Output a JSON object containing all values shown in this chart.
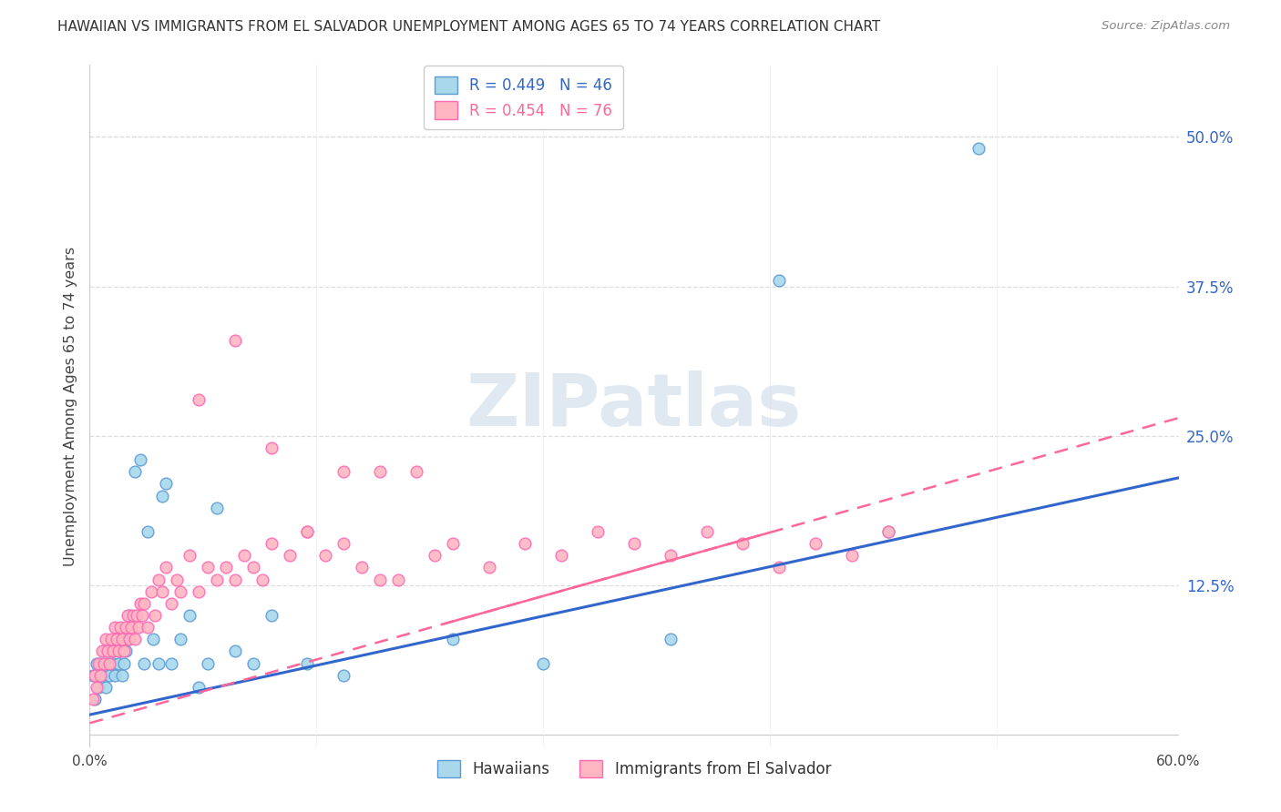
{
  "title": "HAWAIIAN VS IMMIGRANTS FROM EL SALVADOR UNEMPLOYMENT AMONG AGES 65 TO 74 YEARS CORRELATION CHART",
  "source": "Source: ZipAtlas.com",
  "ylabel": "Unemployment Among Ages 65 to 74 years",
  "ytick_labels": [
    "12.5%",
    "25.0%",
    "37.5%",
    "50.0%"
  ],
  "ytick_values": [
    0.125,
    0.25,
    0.375,
    0.5
  ],
  "xlim": [
    0.0,
    0.6
  ],
  "ylim": [
    -0.01,
    0.56
  ],
  "legend_R_hawaiian": "R = 0.449",
  "legend_N_hawaiian": "N = 46",
  "legend_R_salvador": "R = 0.454",
  "legend_N_salvador": "N = 76",
  "color_hawaiian_fill": "#a8d8ea",
  "color_hawaiian_edge": "#5b9bd5",
  "color_salvador_fill": "#ffb6c1",
  "color_salvador_edge": "#ff69b4",
  "color_line_hawaiian": "#3366cc",
  "color_line_salvador": "#ff6699",
  "watermark_text": "ZIPatlas",
  "background_color": "#ffffff",
  "grid_color": "#dddddd",
  "hawaiian_x": [
    0.002,
    0.003,
    0.004,
    0.005,
    0.006,
    0.007,
    0.008,
    0.009,
    0.01,
    0.011,
    0.012,
    0.013,
    0.014,
    0.015,
    0.016,
    0.017,
    0.018,
    0.019,
    0.02,
    0.021,
    0.022,
    0.025,
    0.028,
    0.03,
    0.032,
    0.035,
    0.038,
    0.04,
    0.042,
    0.045,
    0.05,
    0.055,
    0.06,
    0.065,
    0.07,
    0.08,
    0.09,
    0.1,
    0.12,
    0.14,
    0.2,
    0.25,
    0.32,
    0.38,
    0.44,
    0.49
  ],
  "hawaiian_y": [
    0.05,
    0.03,
    0.06,
    0.04,
    0.06,
    0.05,
    0.07,
    0.04,
    0.06,
    0.05,
    0.07,
    0.06,
    0.05,
    0.08,
    0.06,
    0.07,
    0.05,
    0.06,
    0.07,
    0.08,
    0.1,
    0.22,
    0.23,
    0.06,
    0.17,
    0.08,
    0.06,
    0.2,
    0.21,
    0.06,
    0.08,
    0.1,
    0.04,
    0.06,
    0.19,
    0.07,
    0.06,
    0.1,
    0.06,
    0.05,
    0.08,
    0.06,
    0.08,
    0.38,
    0.17,
    0.49
  ],
  "salvador_x": [
    0.002,
    0.003,
    0.004,
    0.005,
    0.006,
    0.007,
    0.008,
    0.009,
    0.01,
    0.011,
    0.012,
    0.013,
    0.014,
    0.015,
    0.016,
    0.017,
    0.018,
    0.019,
    0.02,
    0.021,
    0.022,
    0.023,
    0.024,
    0.025,
    0.026,
    0.027,
    0.028,
    0.029,
    0.03,
    0.032,
    0.034,
    0.036,
    0.038,
    0.04,
    0.042,
    0.045,
    0.048,
    0.05,
    0.055,
    0.06,
    0.065,
    0.07,
    0.075,
    0.08,
    0.085,
    0.09,
    0.095,
    0.1,
    0.11,
    0.12,
    0.13,
    0.14,
    0.15,
    0.16,
    0.17,
    0.18,
    0.19,
    0.2,
    0.22,
    0.24,
    0.26,
    0.28,
    0.3,
    0.32,
    0.34,
    0.36,
    0.38,
    0.4,
    0.42,
    0.44,
    0.06,
    0.08,
    0.1,
    0.12,
    0.14,
    0.16
  ],
  "salvador_y": [
    0.03,
    0.05,
    0.04,
    0.06,
    0.05,
    0.07,
    0.06,
    0.08,
    0.07,
    0.06,
    0.08,
    0.07,
    0.09,
    0.08,
    0.07,
    0.09,
    0.08,
    0.07,
    0.09,
    0.1,
    0.08,
    0.09,
    0.1,
    0.08,
    0.1,
    0.09,
    0.11,
    0.1,
    0.11,
    0.09,
    0.12,
    0.1,
    0.13,
    0.12,
    0.14,
    0.11,
    0.13,
    0.12,
    0.15,
    0.12,
    0.14,
    0.13,
    0.14,
    0.13,
    0.15,
    0.14,
    0.13,
    0.16,
    0.15,
    0.17,
    0.15,
    0.16,
    0.14,
    0.22,
    0.13,
    0.22,
    0.15,
    0.16,
    0.14,
    0.16,
    0.15,
    0.17,
    0.16,
    0.15,
    0.17,
    0.16,
    0.14,
    0.16,
    0.15,
    0.17,
    0.28,
    0.33,
    0.24,
    0.17,
    0.22,
    0.13
  ],
  "line_h_x0": 0.0,
  "line_h_y0": 0.017,
  "line_h_x1": 0.6,
  "line_h_y1": 0.215,
  "line_s_x0": 0.0,
  "line_s_y0": 0.01,
  "line_s_x1": 0.6,
  "line_s_y1": 0.265
}
